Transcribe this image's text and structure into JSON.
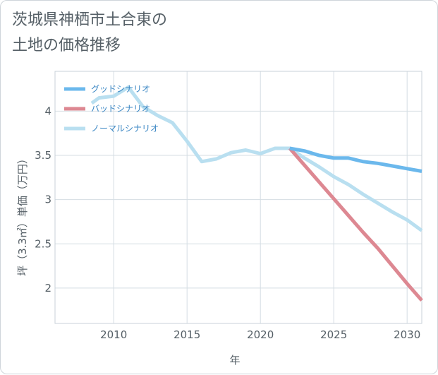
{
  "title_lines": [
    "茨城県神栖市土合東の",
    "土地の価格推移"
  ],
  "chart_data": {
    "type": "line",
    "xlabel": "年",
    "ylabel": "坪（3.3㎡）単価（万円）",
    "xlim": [
      2006,
      2031
    ],
    "ylim": [
      1.6,
      4.45
    ],
    "xticks": [
      2010,
      2015,
      2020,
      2025,
      2030
    ],
    "yticks": [
      2,
      2.5,
      3,
      3.5,
      4
    ],
    "ytick_labels": [
      "2",
      "2.5",
      "3",
      "3.5",
      "4"
    ],
    "grid": true,
    "legend_position": "top-left",
    "series": [
      {
        "name": "グッドシナリオ",
        "color": "#6bb8ec",
        "x": [
          2022,
          2023,
          2024,
          2025,
          2026,
          2027,
          2028,
          2029,
          2030,
          2031
        ],
        "y": [
          3.58,
          3.55,
          3.5,
          3.47,
          3.47,
          3.43,
          3.41,
          3.38,
          3.35,
          3.32
        ]
      },
      {
        "name": "バッドシナリオ",
        "color": "#dd8892",
        "x": [
          2022,
          2023,
          2024,
          2025,
          2026,
          2027,
          2028,
          2029,
          2030,
          2031
        ],
        "y": [
          3.58,
          3.39,
          3.2,
          3.01,
          2.82,
          2.63,
          2.45,
          2.25,
          2.05,
          1.86
        ]
      },
      {
        "name": "ノーマルシナリオ",
        "color": "#b9dff0",
        "x": [
          2008.5,
          2009,
          2010,
          2011,
          2012,
          2013,
          2014,
          2015,
          2016,
          2017,
          2018,
          2019,
          2020,
          2021,
          2022,
          2023,
          2024,
          2025,
          2026,
          2027,
          2028,
          2029,
          2030,
          2031
        ],
        "y": [
          4.09,
          4.15,
          4.17,
          4.27,
          4.05,
          3.95,
          3.87,
          3.66,
          3.43,
          3.46,
          3.53,
          3.56,
          3.52,
          3.58,
          3.58,
          3.47,
          3.37,
          3.26,
          3.17,
          3.06,
          2.96,
          2.86,
          2.77,
          2.65
        ]
      }
    ]
  }
}
